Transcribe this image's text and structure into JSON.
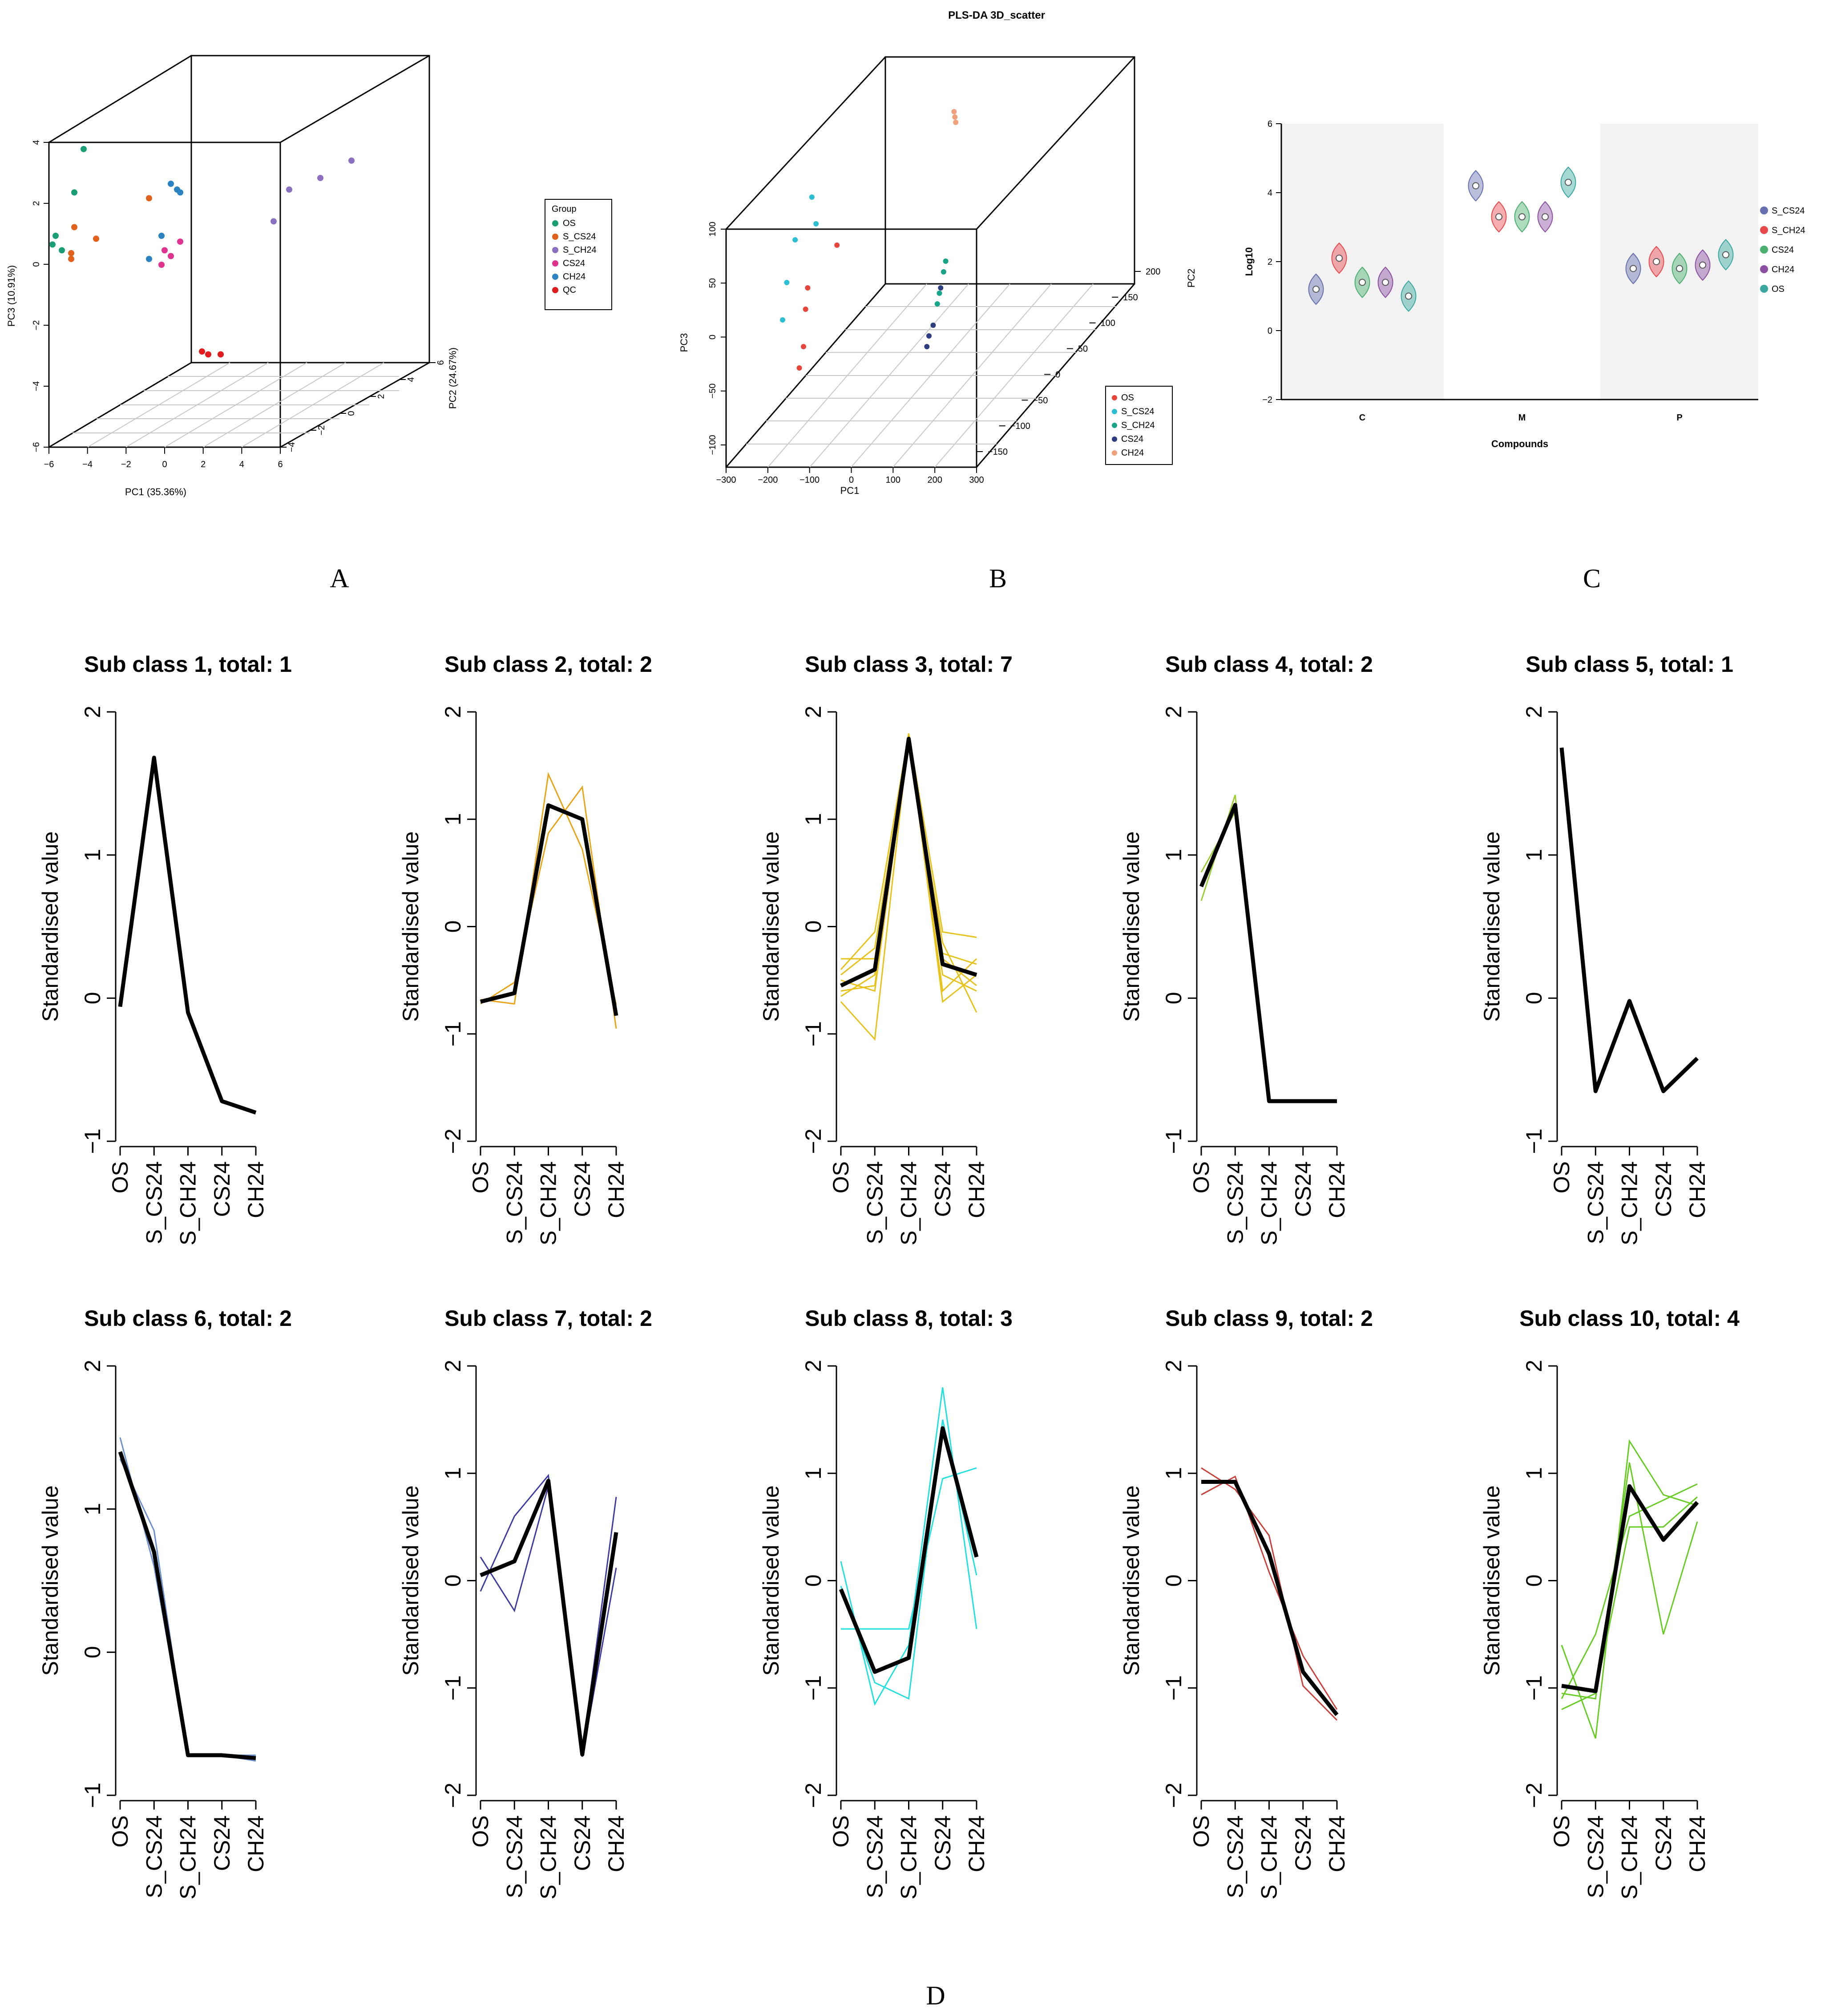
{
  "panel_labels": {
    "a": "A",
    "b": "B",
    "c": "C",
    "d": "D"
  },
  "chart_data": [
    {
      "type": "scatter",
      "panel": "A",
      "title": "",
      "xlabel": "PC1 (35.36%)",
      "ylabel": "PC3 (10.91%)",
      "zlabel": "PC2 (24.67%)",
      "xticks": [
        "-6",
        "-4",
        "-2",
        "0",
        "2",
        "4",
        "6"
      ],
      "yticks": [
        "-6",
        "-4",
        "-2",
        "0",
        "2",
        "4"
      ],
      "zticks": [
        "-4",
        "-2",
        "0",
        "2",
        "4",
        "6"
      ],
      "legend_title": "Group",
      "legend": [
        {
          "name": "OS",
          "color": "#1a9e74"
        },
        {
          "name": "S_CS24",
          "color": "#e0601c"
        },
        {
          "name": "S_CH24",
          "color": "#8a70c0"
        },
        {
          "name": "CS24",
          "color": "#e0338f"
        },
        {
          "name": "CH24",
          "color": "#2b83c4"
        },
        {
          "name": "QC",
          "color": "#e41a1c"
        }
      ],
      "points": [
        {
          "group": "OS",
          "x": -2.6,
          "y": 4.0
        },
        {
          "group": "OS",
          "x": -2.9,
          "y": 2.5
        },
        {
          "group": "OS",
          "x": -3.5,
          "y": 1.0
        },
        {
          "group": "OS",
          "x": -3.3,
          "y": 0.5
        },
        {
          "group": "OS",
          "x": -3.6,
          "y": 0.7
        },
        {
          "group": "S_CS24",
          "x": -2.9,
          "y": 1.3
        },
        {
          "group": "S_CS24",
          "x": -3.0,
          "y": 0.2
        },
        {
          "group": "S_CS24",
          "x": -2.2,
          "y": 0.9
        },
        {
          "group": "S_CS24",
          "x": -0.5,
          "y": 2.3
        },
        {
          "group": "S_CS24",
          "x": -3.0,
          "y": 0.4
        },
        {
          "group": "S_CH24",
          "x": 3.5,
          "y": 1.5
        },
        {
          "group": "S_CH24",
          "x": 4.0,
          "y": 2.6
        },
        {
          "group": "S_CH24",
          "x": 5.0,
          "y": 3.0
        },
        {
          "group": "S_CH24",
          "x": 6.0,
          "y": 3.6
        },
        {
          "group": "CS24",
          "x": 0.5,
          "y": 0.8
        },
        {
          "group": "CS24",
          "x": 0.2,
          "y": 0.3
        },
        {
          "group": "CS24",
          "x": 0.0,
          "y": 0.5
        },
        {
          "group": "CS24",
          "x": -0.1,
          "y": 0.0
        },
        {
          "group": "CH24",
          "x": 0.2,
          "y": 2.8
        },
        {
          "group": "CH24",
          "x": 0.5,
          "y": 2.5
        },
        {
          "group": "CH24",
          "x": 0.4,
          "y": 2.6
        },
        {
          "group": "CH24",
          "x": -0.1,
          "y": 1.0
        },
        {
          "group": "CH24",
          "x": -0.5,
          "y": 0.2
        },
        {
          "group": "QC",
          "x": 1.2,
          "y": -3.0
        },
        {
          "group": "QC",
          "x": 1.4,
          "y": -3.1
        },
        {
          "group": "QC",
          "x": 1.8,
          "y": -3.1
        }
      ]
    },
    {
      "type": "scatter",
      "panel": "B",
      "title": "PLS-DA 3D_scatter",
      "xlabel": "PC1",
      "ylabel": "PC3",
      "zlabel": "PC2",
      "xticks": [
        "-300",
        "-200",
        "-100",
        "0",
        "100",
        "200",
        "300"
      ],
      "yticks": [
        "-100",
        "-50",
        "0",
        "50",
        "100"
      ],
      "zticks": [
        "-150",
        "-100",
        "-50",
        "0",
        "50",
        "100",
        "150",
        "200"
      ],
      "legend": [
        {
          "name": "OS",
          "color": "#e8453c"
        },
        {
          "name": "S_CS24",
          "color": "#2cbfd4"
        },
        {
          "name": "S_CH24",
          "color": "#17a589"
        },
        {
          "name": "CS24",
          "color": "#2c3e80"
        },
        {
          "name": "CH24",
          "color": "#f0a07a"
        }
      ],
      "points": [
        {
          "group": "OS",
          "x": -90,
          "y": 45
        },
        {
          "group": "OS",
          "x": -95,
          "y": 25
        },
        {
          "group": "OS",
          "x": -100,
          "y": -10
        },
        {
          "group": "OS",
          "x": -110,
          "y": -30
        },
        {
          "group": "OS",
          "x": -20,
          "y": 85
        },
        {
          "group": "S_CS24",
          "x": -80,
          "y": 130
        },
        {
          "group": "S_CS24",
          "x": -70,
          "y": 105
        },
        {
          "group": "S_CS24",
          "x": -120,
          "y": 90
        },
        {
          "group": "S_CS24",
          "x": -140,
          "y": 50
        },
        {
          "group": "S_CS24",
          "x": -150,
          "y": 15
        },
        {
          "group": "S_CH24",
          "x": 240,
          "y": 70
        },
        {
          "group": "S_CH24",
          "x": 235,
          "y": 60
        },
        {
          "group": "S_CH24",
          "x": 225,
          "y": 40
        },
        {
          "group": "S_CH24",
          "x": 220,
          "y": 30
        },
        {
          "group": "CS24",
          "x": 228,
          "y": 45
        },
        {
          "group": "CS24",
          "x": 210,
          "y": 10
        },
        {
          "group": "CS24",
          "x": 200,
          "y": 0
        },
        {
          "group": "CS24",
          "x": 195,
          "y": -10
        },
        {
          "group": "CH24",
          "x": 260,
          "y": 210
        },
        {
          "group": "CH24",
          "x": 262,
          "y": 205
        },
        {
          "group": "CH24",
          "x": 264,
          "y": 200
        }
      ]
    },
    {
      "type": "violin",
      "panel": "C",
      "xlabel": "Compounds",
      "ylabel": "Log10",
      "categories": [
        "C",
        "M",
        "P"
      ],
      "yticks": [
        "-2",
        "0",
        "2",
        "4",
        "6"
      ],
      "ylim": [
        -2,
        6
      ],
      "legend": [
        {
          "name": "S_CS24",
          "color": "#6670b0"
        },
        {
          "name": "S_CH24",
          "color": "#e8494d"
        },
        {
          "name": "CS24",
          "color": "#4aaf6e"
        },
        {
          "name": "CH24",
          "color": "#8a4fa0"
        },
        {
          "name": "OS",
          "color": "#3aa8a0"
        }
      ],
      "series": [
        {
          "name": "S_CS24",
          "values": [
            1.2,
            4.2,
            1.8
          ]
        },
        {
          "name": "S_CH24",
          "values": [
            2.1,
            3.3,
            2.0
          ]
        },
        {
          "name": "CS24",
          "values": [
            1.4,
            3.3,
            1.8
          ]
        },
        {
          "name": "CH24",
          "values": [
            1.4,
            3.3,
            1.9
          ]
        },
        {
          "name": "OS",
          "values": [
            1.0,
            4.3,
            2.2
          ]
        }
      ]
    }
  ],
  "subclass_panel": {
    "ylabel": "Standardised value",
    "xticks": [
      "OS",
      "S_CS24",
      "S_CH24",
      "CS24",
      "CH24"
    ],
    "yticks": [
      "-2",
      "-1",
      "0",
      "1",
      "2"
    ],
    "yticks_short": [
      "-1",
      "0",
      "1",
      "2"
    ],
    "subplots": [
      {
        "title": "Sub class 1, total: 1",
        "ylim": [
          -1,
          2
        ],
        "color": "#000000",
        "mean": [
          -0.06,
          1.68,
          -0.1,
          -0.72,
          -0.8
        ],
        "lines": []
      },
      {
        "title": "Sub class 2, total: 2",
        "ylim": [
          -2,
          2
        ],
        "color": "#e8a317",
        "mean": [
          -0.7,
          -0.62,
          1.13,
          1.0,
          -0.83
        ],
        "lines": [
          [
            -0.72,
            -0.52,
            0.87,
            1.3,
            -0.95
          ],
          [
            -0.68,
            -0.72,
            1.42,
            0.72,
            -0.73
          ]
        ]
      },
      {
        "title": "Sub class 3, total: 7",
        "ylim": [
          -2,
          2
        ],
        "color": "#e6c21a",
        "mean": [
          -0.55,
          -0.4,
          1.75,
          -0.35,
          -0.45
        ],
        "lines": [
          [
            -0.4,
            -0.05,
            1.8,
            -0.05,
            -0.1
          ],
          [
            -0.7,
            -1.05,
            1.78,
            -0.7,
            -0.45
          ],
          [
            -0.3,
            -0.3,
            1.7,
            -0.15,
            -0.8
          ],
          [
            -0.6,
            -0.55,
            1.72,
            -0.45,
            -0.6
          ],
          [
            -0.45,
            -0.2,
            1.76,
            -0.6,
            -0.3
          ],
          [
            -0.65,
            -0.45,
            1.73,
            -0.3,
            -0.55
          ],
          [
            -0.5,
            -0.6,
            1.74,
            -0.25,
            -0.35
          ]
        ]
      },
      {
        "title": "Sub class 4, total: 2",
        "ylim": [
          -1,
          2
        ],
        "color": "#9acd32",
        "mean": [
          0.78,
          1.35,
          -0.72,
          -0.72,
          -0.72
        ],
        "lines": [
          [
            0.68,
            1.42,
            -0.72,
            -0.72,
            -0.72
          ],
          [
            0.88,
            1.3,
            -0.72,
            -0.72,
            -0.72
          ]
        ]
      },
      {
        "title": "Sub class 5, total: 1",
        "ylim": [
          -1,
          2
        ],
        "color": "#000000",
        "mean": [
          1.75,
          -0.65,
          -0.02,
          -0.65,
          -0.42
        ],
        "lines": []
      },
      {
        "title": "Sub class 6, total: 2",
        "ylim": [
          -1,
          2
        ],
        "color": "#6a8fd0",
        "mean": [
          1.4,
          0.7,
          -0.72,
          -0.72,
          -0.74
        ],
        "lines": [
          [
            1.5,
            0.6,
            -0.72,
            -0.72,
            -0.72
          ],
          [
            1.35,
            0.85,
            -0.72,
            -0.72,
            -0.76
          ]
        ]
      },
      {
        "title": "Sub class 7, total: 2",
        "ylim": [
          -2,
          2
        ],
        "color": "#3a3aa0",
        "mean": [
          0.05,
          0.18,
          0.93,
          -1.62,
          0.45
        ],
        "lines": [
          [
            -0.1,
            0.6,
            0.98,
            -1.6,
            0.78
          ],
          [
            0.22,
            -0.28,
            0.88,
            -1.64,
            0.12
          ]
        ]
      },
      {
        "title": "Sub class 8, total: 3",
        "ylim": [
          -2,
          2
        ],
        "color": "#22e0e0",
        "mean": [
          -0.08,
          -0.85,
          -0.72,
          1.42,
          0.22
        ],
        "lines": [
          [
            0.18,
            -1.15,
            -0.6,
            1.8,
            -0.45
          ],
          [
            -0.45,
            -0.45,
            -0.45,
            0.95,
            1.05
          ],
          [
            -0.05,
            -0.95,
            -1.1,
            1.5,
            0.05
          ]
        ]
      },
      {
        "title": "Sub class 9, total: 2",
        "ylim": [
          -2,
          2
        ],
        "color": "#c9403a",
        "mean": [
          0.92,
          0.92,
          0.25,
          -0.85,
          -1.25
        ],
        "lines": [
          [
            1.05,
            0.85,
            0.42,
            -0.98,
            -1.3
          ],
          [
            0.8,
            0.97,
            0.08,
            -0.7,
            -1.2
          ]
        ]
      },
      {
        "title": "Sub class 10, total: 4",
        "ylim": [
          -2,
          2
        ],
        "color": "#66cc22",
        "mean": [
          -0.98,
          -1.03,
          0.88,
          0.38,
          0.73
        ],
        "lines": [
          [
            -0.6,
            -1.47,
            1.3,
            0.8,
            0.7
          ],
          [
            -1.1,
            -0.5,
            0.6,
            0.75,
            0.9
          ],
          [
            -1.05,
            -1.1,
            1.1,
            -0.5,
            0.55
          ],
          [
            -1.2,
            -1.05,
            0.5,
            0.5,
            0.78
          ]
        ]
      }
    ]
  }
}
